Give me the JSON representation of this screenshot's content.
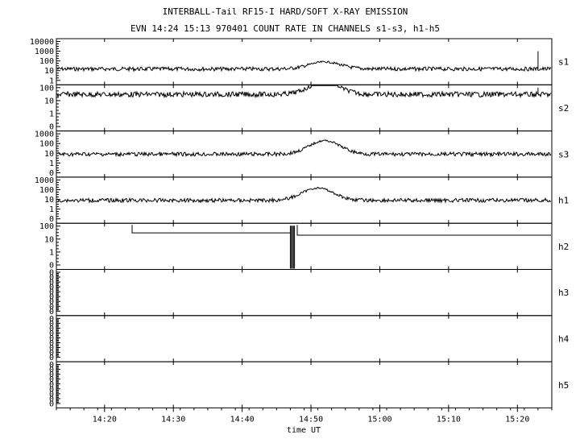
{
  "chart_data": {
    "type": "line",
    "title": "INTERBALL-Tail RF15-I HARD/SOFT X-RAY EMISSION",
    "subtitle": "EVN 14:24 15:13 970401  COUNT RATE IN CHANNELS s1-s3, h1-h5",
    "xlabel": "time UT",
    "x_ticks": [
      "14:20",
      "14:30",
      "14:40",
      "14:50",
      "15:00",
      "15:10",
      "15:20"
    ],
    "x_tick_minutes": [
      860,
      870,
      880,
      890,
      900,
      910,
      920
    ],
    "xlim_minutes": [
      853,
      925
    ],
    "grid": false,
    "y_scale": "log",
    "panels": [
      {
        "name": "s1",
        "yticks": [
          "10000",
          "1000",
          "100",
          "10",
          "1"
        ],
        "baseline": 15,
        "peak": {
          "time": "14:52",
          "value": 80
        },
        "spikes": [
          {
            "time": "15:23",
            "value": 1000
          }
        ]
      },
      {
        "name": "s2",
        "yticks": [
          "100",
          "10",
          "1",
          "0"
        ],
        "baseline": 30,
        "peak": {
          "time": "14:52",
          "value": 250
        },
        "spikes": [
          {
            "time": "15:23",
            "value": 100
          }
        ]
      },
      {
        "name": "s3",
        "yticks": [
          "1000",
          "100",
          "10",
          "1",
          "0"
        ],
        "baseline": 8,
        "peak": {
          "time": "14:52",
          "value": 200
        },
        "spikes": []
      },
      {
        "name": "h1",
        "yticks": [
          "1000",
          "100",
          "10",
          "1",
          "0"
        ],
        "baseline": 8,
        "peak": {
          "time": "14:51",
          "value": 150
        },
        "spikes": []
      },
      {
        "name": "h2",
        "yticks": [
          "100",
          "10",
          "1",
          "0"
        ],
        "steps": [
          {
            "from": "14:24",
            "to": "14:47",
            "value": 30
          },
          {
            "from": "14:48",
            "to": "15:25",
            "value": 20
          }
        ],
        "spikes": []
      },
      {
        "name": "h3",
        "yticks": [
          "0",
          "0",
          "0",
          "0",
          "0",
          "0",
          "0",
          "0",
          "0"
        ],
        "steps": [],
        "spikes": []
      },
      {
        "name": "h4",
        "yticks": [
          "0",
          "0",
          "0",
          "0",
          "0",
          "0",
          "0",
          "0",
          "0"
        ],
        "steps": [],
        "spikes": []
      },
      {
        "name": "h5",
        "yticks": [
          "0",
          "0",
          "0",
          "0",
          "0",
          "0",
          "0",
          "0",
          "0"
        ],
        "steps": [],
        "spikes": []
      }
    ]
  }
}
